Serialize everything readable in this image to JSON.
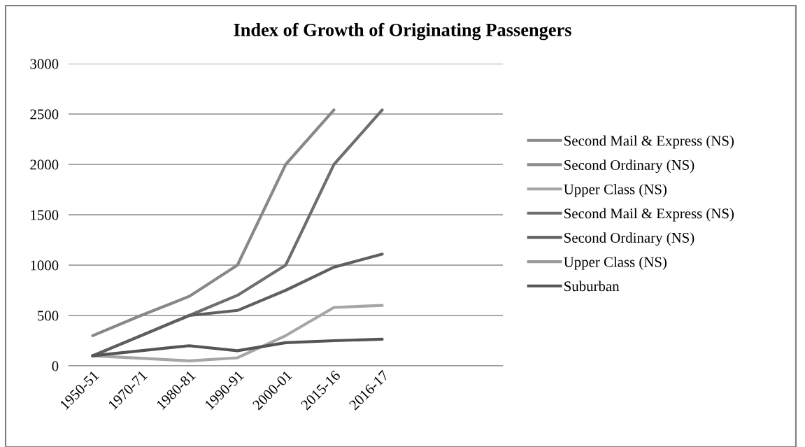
{
  "chart_data": {
    "type": "line",
    "title": "Index of Growth of Originating Passengers",
    "categories": [
      "1950-51",
      "1970-71",
      "1980-81",
      "1990-91",
      "2000-01",
      "2015-16",
      "2016-17"
    ],
    "series": [
      {
        "name": "Second Mail & Express (NS)",
        "color": "#888888",
        "values": [
          300,
          500,
          690,
          1000,
          2000,
          2540,
          null
        ]
      },
      {
        "name": "Second Ordinary (NS)",
        "color": "#8c8c8c",
        "values": [
          null,
          null,
          null,
          null,
          null,
          null,
          null
        ]
      },
      {
        "name": "Upper Class (NS)",
        "color": "#a6a6a6",
        "values": [
          100,
          75,
          50,
          80,
          300,
          580,
          600
        ]
      },
      {
        "name": "Second Mail & Express (NS)",
        "color": "#6e6e6e",
        "values": [
          100,
          300,
          500,
          700,
          1000,
          2000,
          2540
        ]
      },
      {
        "name": "Second Ordinary (NS)",
        "color": "#5f5f5f",
        "values": [
          100,
          300,
          500,
          550,
          750,
          980,
          1110
        ]
      },
      {
        "name": "Upper Class (NS)",
        "color": "#9a9a9a",
        "values": [
          null,
          null,
          null,
          null,
          null,
          null,
          null
        ]
      },
      {
        "name": "Suburban",
        "color": "#555555",
        "values": [
          100,
          150,
          200,
          150,
          230,
          250,
          265
        ]
      }
    ],
    "ylim": [
      0,
      3000
    ],
    "yticks": [
      0,
      500,
      1000,
      1500,
      2000,
      2500,
      3000
    ],
    "grid": "y",
    "legend": "right",
    "marker": "none",
    "line_style": "solid"
  }
}
